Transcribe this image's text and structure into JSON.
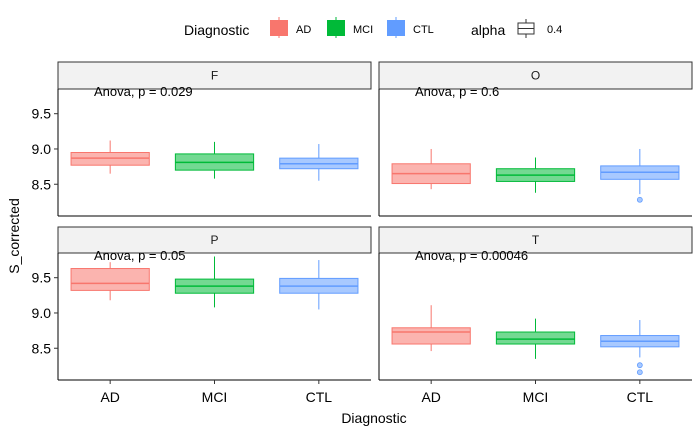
{
  "chart_data": {
    "type": "boxplot",
    "x_title": "Diagnostic",
    "y_title": "S_corrected",
    "categories": [
      "AD",
      "MCI",
      "CTL"
    ],
    "y_ticks": [
      8.5,
      9.0,
      9.5
    ],
    "y_range": [
      8.05,
      9.85
    ],
    "legend": {
      "position": "top",
      "fill_title": "Diagnostic",
      "fill_entries": [
        {
          "label": "AD",
          "color": "#F8766D"
        },
        {
          "label": "MCI",
          "color": "#00BA38"
        },
        {
          "label": "CTL",
          "color": "#619CFF"
        }
      ],
      "alpha_title": "alpha",
      "alpha_value": "0.4"
    },
    "panels": [
      {
        "name": "F",
        "annotation": "Anova, p = 0.029",
        "boxes": [
          {
            "group": "AD",
            "min": 8.65,
            "q1": 8.77,
            "median": 8.87,
            "q3": 8.95,
            "max": 9.12,
            "outliers": []
          },
          {
            "group": "MCI",
            "min": 8.58,
            "q1": 8.7,
            "median": 8.81,
            "q3": 8.93,
            "max": 9.1,
            "outliers": []
          },
          {
            "group": "CTL",
            "min": 8.55,
            "q1": 8.72,
            "median": 8.79,
            "q3": 8.87,
            "max": 9.07,
            "outliers": []
          }
        ]
      },
      {
        "name": "O",
        "annotation": "Anova, p = 0.6",
        "boxes": [
          {
            "group": "AD",
            "min": 8.43,
            "q1": 8.51,
            "median": 8.65,
            "q3": 8.79,
            "max": 9.0,
            "outliers": []
          },
          {
            "group": "MCI",
            "min": 8.38,
            "q1": 8.54,
            "median": 8.63,
            "q3": 8.72,
            "max": 8.88,
            "outliers": []
          },
          {
            "group": "CTL",
            "min": 8.36,
            "q1": 8.57,
            "median": 8.67,
            "q3": 8.76,
            "max": 9.0,
            "outliers": [
              8.28
            ]
          }
        ]
      },
      {
        "name": "P",
        "annotation": "Anova, p = 0.05",
        "boxes": [
          {
            "group": "AD",
            "min": 9.18,
            "q1": 9.32,
            "median": 9.42,
            "q3": 9.63,
            "max": 9.72,
            "outliers": []
          },
          {
            "group": "MCI",
            "min": 9.08,
            "q1": 9.28,
            "median": 9.38,
            "q3": 9.48,
            "max": 9.8,
            "outliers": []
          },
          {
            "group": "CTL",
            "min": 9.05,
            "q1": 9.28,
            "median": 9.38,
            "q3": 9.49,
            "max": 9.75,
            "outliers": []
          }
        ]
      },
      {
        "name": "T",
        "annotation": "Anova, p = 0.00046",
        "boxes": [
          {
            "group": "AD",
            "min": 8.46,
            "q1": 8.56,
            "median": 8.73,
            "q3": 8.79,
            "max": 9.11,
            "outliers": []
          },
          {
            "group": "MCI",
            "min": 8.35,
            "q1": 8.56,
            "median": 8.63,
            "q3": 8.73,
            "max": 8.92,
            "outliers": []
          },
          {
            "group": "CTL",
            "min": 8.37,
            "q1": 8.52,
            "median": 8.6,
            "q3": 8.68,
            "max": 8.9,
            "outliers": [
              8.26,
              8.16
            ]
          }
        ]
      }
    ]
  }
}
